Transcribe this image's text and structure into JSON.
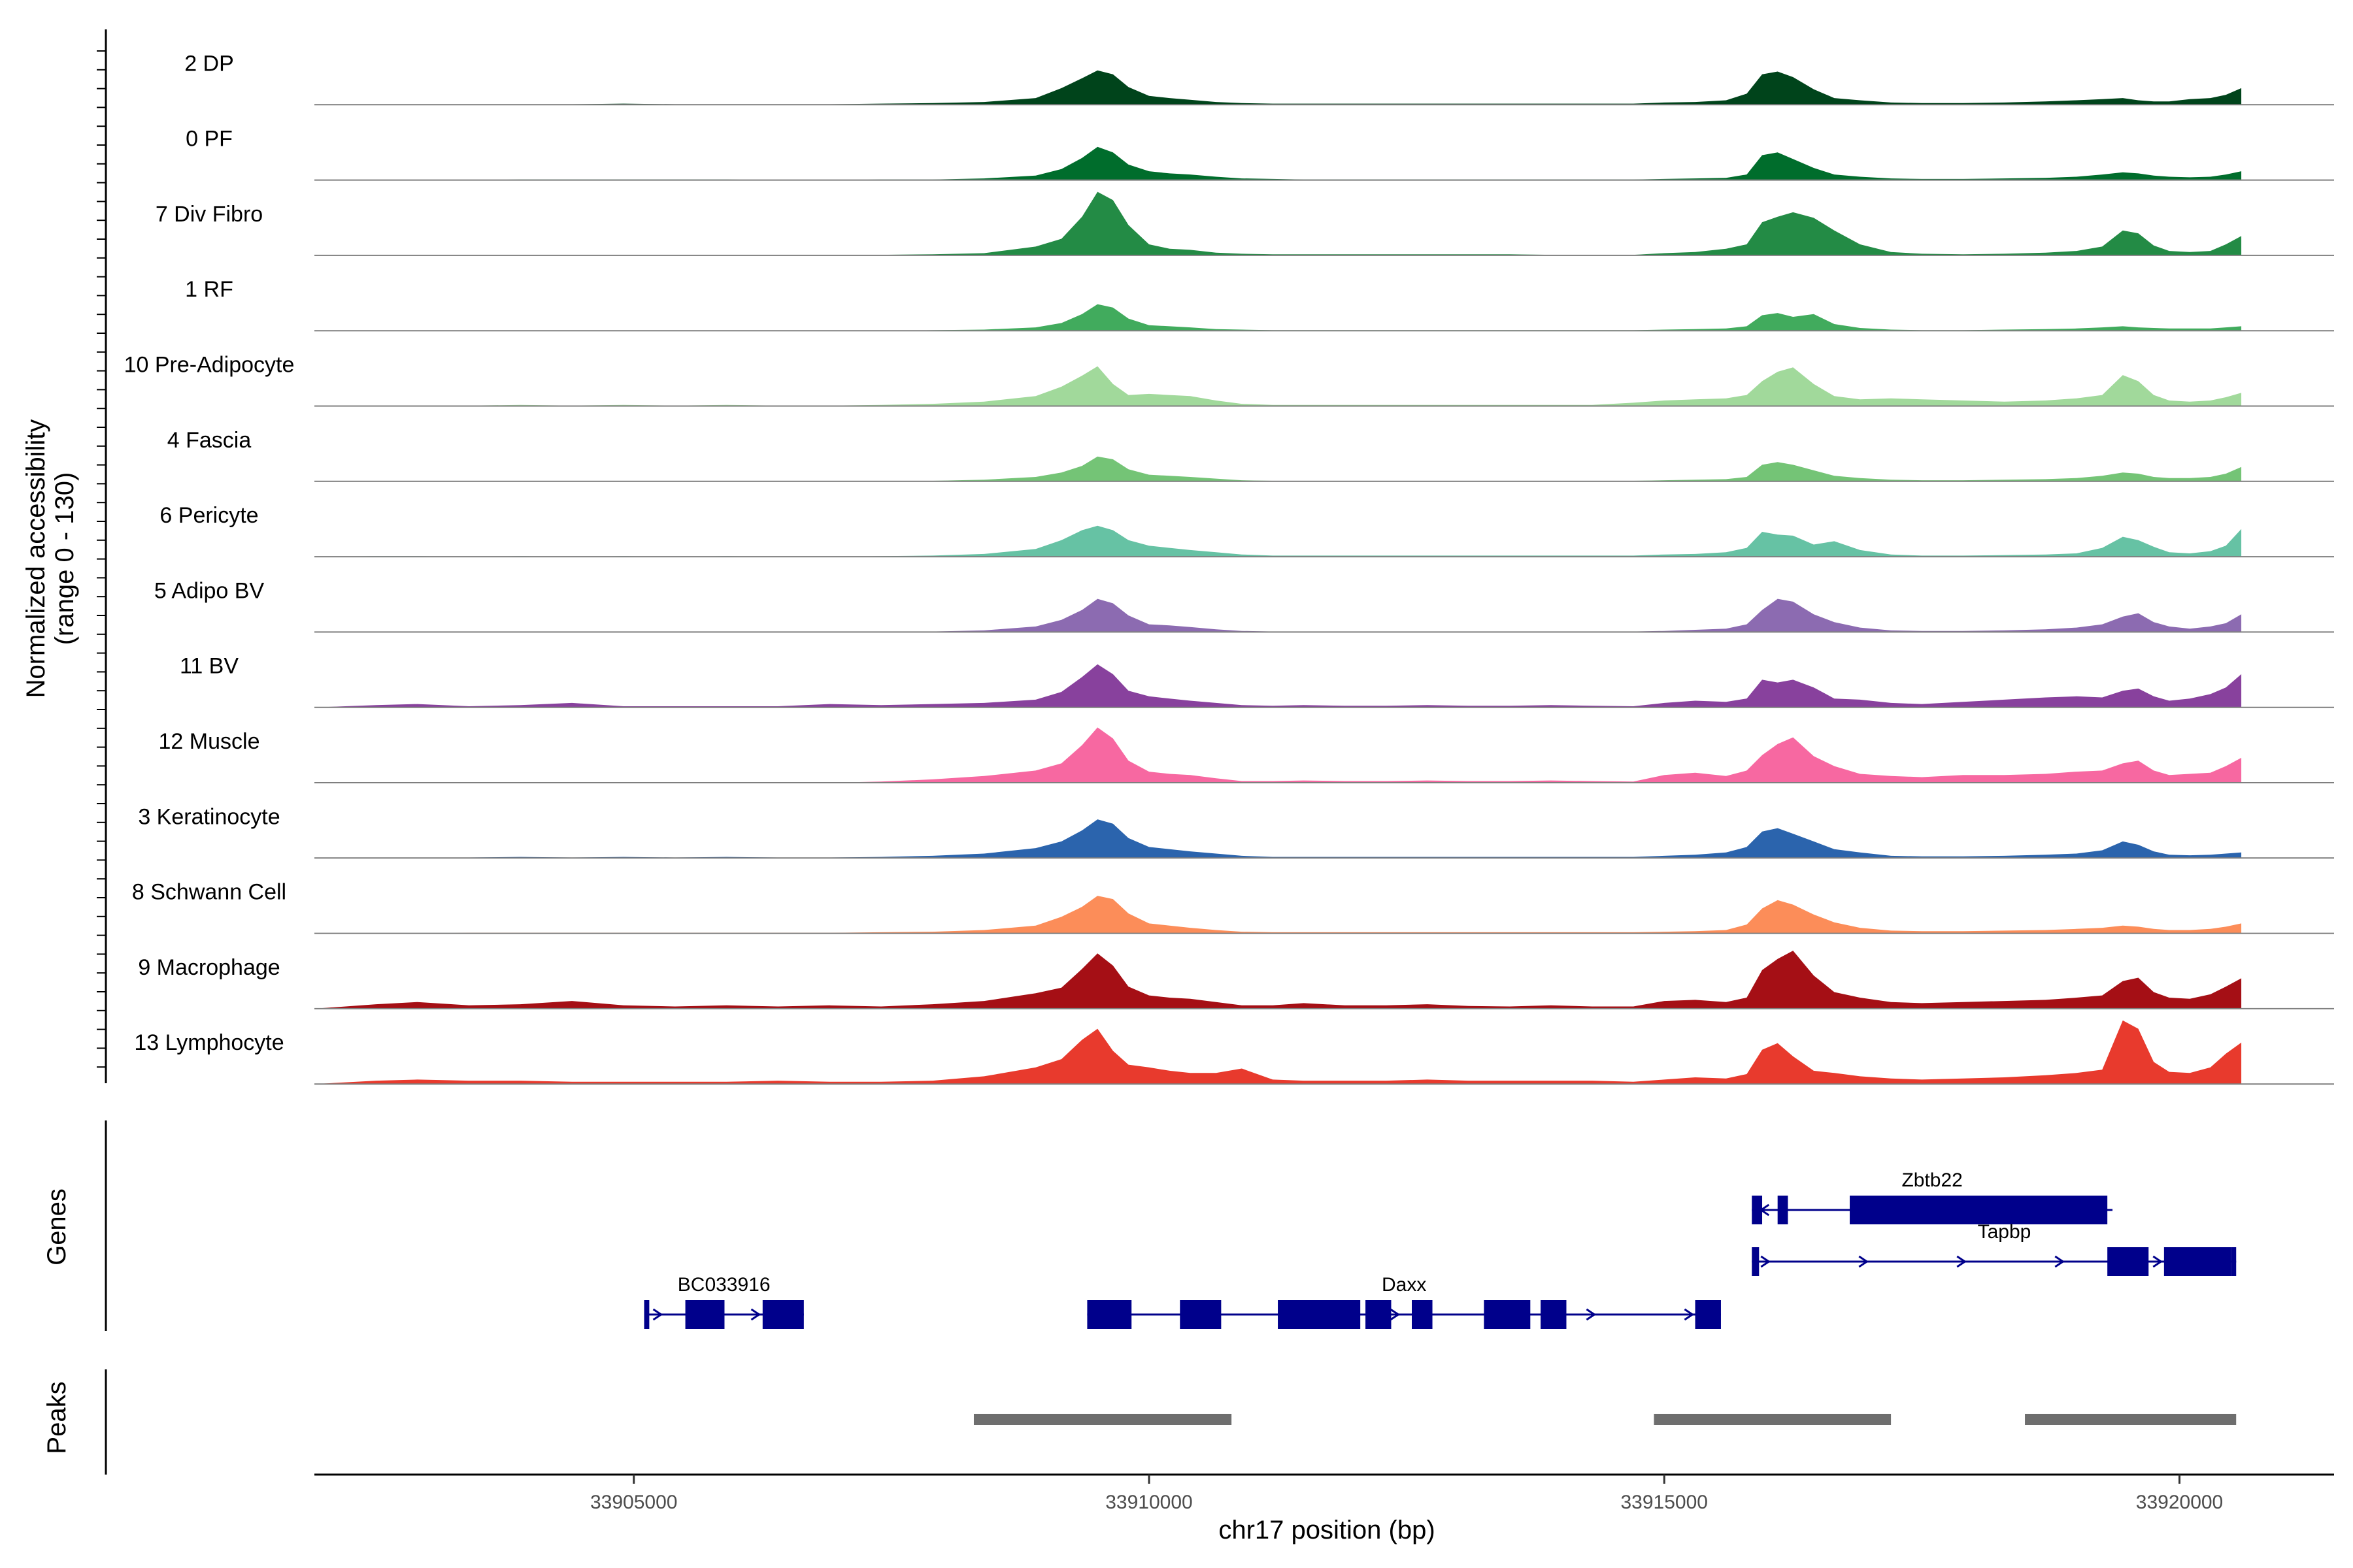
{
  "chart_data": {
    "type": "area",
    "title": "",
    "coverage": {
      "ylabel": "Normalized accessibility",
      "ylabel_range": "(range 0 - 130)",
      "ylim": [
        0,
        130
      ],
      "x": [
        33901900,
        33902500,
        33902900,
        33903400,
        33903900,
        33904400,
        33904900,
        33905400,
        33905900,
        33906400,
        33906900,
        33907400,
        33907900,
        33908400,
        33908900,
        33909150,
        33909350,
        33909500,
        33909650,
        33909800,
        33910000,
        33910200,
        33910400,
        33910650,
        33910900,
        33911200,
        33911500,
        33911900,
        33912300,
        33912700,
        33913100,
        33913500,
        33913900,
        33914300,
        33914700,
        33915000,
        33915300,
        33915600,
        33915800,
        33915950,
        33916100,
        33916250,
        33916450,
        33916650,
        33916900,
        33917200,
        33917500,
        33917900,
        33918300,
        33918700,
        33919000,
        33919250,
        33919450,
        33919600,
        33919750,
        33919900,
        33920100,
        33920300,
        33920450,
        33920600
      ],
      "series": [
        {
          "name": "2 DP",
          "color": "#00441b",
          "values": [
            0,
            0,
            1,
            1,
            1,
            1,
            2,
            1,
            1,
            1,
            1,
            2,
            3,
            5,
            12,
            30,
            48,
            62,
            55,
            32,
            16,
            12,
            9,
            5,
            3,
            2,
            2,
            2,
            2,
            2,
            2,
            2,
            2,
            2,
            2,
            4,
            5,
            8,
            20,
            55,
            60,
            50,
            28,
            12,
            8,
            4,
            3,
            3,
            4,
            6,
            8,
            10,
            12,
            8,
            6,
            6,
            10,
            12,
            18,
            30
          ]
        },
        {
          "name": "0 PF",
          "color": "#006d2c",
          "values": [
            0,
            0,
            0,
            0,
            1,
            1,
            1,
            1,
            1,
            0,
            0,
            1,
            1,
            3,
            8,
            20,
            40,
            60,
            50,
            28,
            16,
            12,
            10,
            6,
            3,
            2,
            1,
            1,
            1,
            1,
            1,
            1,
            1,
            1,
            1,
            2,
            3,
            4,
            10,
            45,
            50,
            38,
            22,
            10,
            6,
            3,
            2,
            2,
            3,
            4,
            6,
            10,
            14,
            12,
            8,
            6,
            5,
            6,
            10,
            16
          ]
        },
        {
          "name": "7 Div Fibro",
          "color": "#238b45",
          "values": [
            0,
            0,
            0,
            0,
            1,
            0,
            1,
            0,
            0,
            0,
            0,
            1,
            2,
            4,
            16,
            30,
            70,
            115,
            100,
            55,
            20,
            12,
            10,
            5,
            3,
            2,
            2,
            2,
            2,
            2,
            2,
            2,
            1,
            1,
            1,
            4,
            6,
            12,
            20,
            60,
            70,
            78,
            68,
            45,
            20,
            6,
            3,
            2,
            3,
            5,
            8,
            16,
            45,
            40,
            18,
            8,
            6,
            8,
            20,
            35
          ]
        },
        {
          "name": "1 RF",
          "color": "#41ab5d",
          "values": [
            0,
            0,
            0,
            0,
            0,
            0,
            0,
            0,
            0,
            0,
            0,
            0,
            1,
            2,
            6,
            14,
            30,
            48,
            42,
            22,
            10,
            8,
            6,
            3,
            2,
            1,
            1,
            1,
            1,
            1,
            1,
            1,
            1,
            1,
            1,
            2,
            3,
            4,
            8,
            28,
            32,
            25,
            30,
            12,
            5,
            2,
            1,
            1,
            2,
            3,
            4,
            6,
            8,
            6,
            5,
            4,
            4,
            4,
            6,
            8
          ]
        },
        {
          "name": "10 Pre-Adipocyte",
          "color": "#a1d99b",
          "values": [
            0,
            1,
            1,
            1,
            2,
            1,
            2,
            1,
            2,
            1,
            1,
            2,
            4,
            8,
            18,
            35,
            55,
            72,
            40,
            20,
            22,
            20,
            18,
            10,
            4,
            2,
            2,
            2,
            2,
            2,
            2,
            2,
            2,
            2,
            6,
            10,
            12,
            14,
            20,
            45,
            62,
            70,
            40,
            18,
            12,
            14,
            12,
            10,
            8,
            10,
            14,
            20,
            56,
            45,
            20,
            10,
            8,
            10,
            16,
            24
          ]
        },
        {
          "name": "4 Fascia",
          "color": "#74c476",
          "values": [
            0,
            0,
            0,
            0,
            0,
            0,
            0,
            0,
            0,
            0,
            0,
            1,
            1,
            3,
            8,
            16,
            28,
            45,
            40,
            22,
            12,
            10,
            8,
            5,
            2,
            1,
            1,
            1,
            1,
            1,
            1,
            1,
            1,
            1,
            1,
            2,
            3,
            4,
            8,
            30,
            35,
            30,
            20,
            10,
            6,
            3,
            2,
            2,
            3,
            4,
            6,
            10,
            16,
            14,
            8,
            6,
            6,
            8,
            14,
            26
          ]
        },
        {
          "name": "6 Pericyte",
          "color": "#66c2a4",
          "values": [
            0,
            1,
            1,
            0,
            1,
            0,
            1,
            0,
            1,
            0,
            0,
            1,
            2,
            5,
            14,
            30,
            48,
            56,
            48,
            30,
            20,
            16,
            12,
            8,
            4,
            2,
            2,
            2,
            2,
            2,
            2,
            2,
            2,
            2,
            2,
            4,
            5,
            8,
            16,
            45,
            40,
            38,
            22,
            28,
            12,
            4,
            2,
            2,
            3,
            4,
            6,
            16,
            36,
            30,
            18,
            8,
            6,
            10,
            20,
            50
          ]
        },
        {
          "name": "5 Adipo BV",
          "color": "#8c6bb1",
          "values": [
            0,
            0,
            0,
            0,
            0,
            0,
            0,
            0,
            0,
            0,
            0,
            0,
            1,
            3,
            10,
            22,
            40,
            60,
            52,
            30,
            14,
            12,
            9,
            5,
            2,
            1,
            1,
            1,
            1,
            1,
            1,
            1,
            1,
            1,
            1,
            2,
            4,
            6,
            14,
            40,
            60,
            55,
            32,
            18,
            8,
            3,
            2,
            2,
            3,
            5,
            8,
            14,
            28,
            34,
            18,
            10,
            6,
            10,
            16,
            32
          ]
        },
        {
          "name": "11 BV",
          "color": "#88419d",
          "values": [
            0,
            4,
            6,
            2,
            4,
            8,
            2,
            2,
            2,
            2,
            6,
            4,
            6,
            8,
            14,
            28,
            55,
            78,
            60,
            30,
            20,
            16,
            12,
            8,
            4,
            3,
            4,
            3,
            3,
            4,
            3,
            3,
            4,
            3,
            2,
            8,
            12,
            10,
            16,
            50,
            45,
            50,
            36,
            16,
            14,
            8,
            6,
            10,
            14,
            18,
            20,
            18,
            30,
            34,
            20,
            12,
            16,
            24,
            36,
            60
          ]
        },
        {
          "name": "12 Muscle",
          "color": "#f768a1",
          "values": [
            0,
            0,
            0,
            0,
            0,
            0,
            0,
            0,
            0,
            0,
            0,
            2,
            6,
            12,
            22,
            35,
            68,
            100,
            80,
            40,
            20,
            16,
            14,
            8,
            3,
            3,
            4,
            3,
            3,
            4,
            3,
            3,
            4,
            3,
            2,
            14,
            18,
            12,
            22,
            50,
            70,
            82,
            48,
            30,
            16,
            12,
            10,
            14,
            14,
            16,
            20,
            22,
            35,
            40,
            22,
            14,
            16,
            18,
            30,
            45
          ]
        },
        {
          "name": "3 Keratinocyte",
          "color": "#2b64ad",
          "values": [
            0,
            0,
            1,
            1,
            2,
            1,
            2,
            1,
            2,
            1,
            1,
            2,
            4,
            8,
            18,
            30,
            50,
            70,
            62,
            36,
            20,
            16,
            12,
            8,
            4,
            2,
            2,
            2,
            2,
            2,
            2,
            2,
            2,
            2,
            2,
            4,
            6,
            10,
            20,
            48,
            54,
            44,
            30,
            16,
            10,
            4,
            3,
            3,
            4,
            6,
            8,
            14,
            30,
            24,
            12,
            6,
            5,
            6,
            8,
            10
          ]
        },
        {
          "name": "8 Schwann Cell",
          "color": "#fc8d59",
          "values": [
            0,
            0,
            0,
            1,
            1,
            1,
            1,
            1,
            1,
            1,
            1,
            2,
            3,
            6,
            14,
            30,
            48,
            68,
            62,
            36,
            18,
            14,
            10,
            6,
            3,
            2,
            2,
            2,
            2,
            2,
            2,
            2,
            2,
            2,
            2,
            3,
            4,
            6,
            16,
            45,
            60,
            52,
            34,
            20,
            10,
            5,
            4,
            4,
            5,
            6,
            8,
            10,
            14,
            12,
            8,
            6,
            6,
            8,
            12,
            18
          ]
        },
        {
          "name": "9 Macrophage",
          "color": "#a50f15",
          "values": [
            0,
            8,
            12,
            6,
            8,
            14,
            6,
            4,
            6,
            4,
            6,
            4,
            8,
            14,
            28,
            38,
            72,
            100,
            78,
            40,
            24,
            20,
            18,
            12,
            6,
            6,
            10,
            6,
            6,
            8,
            5,
            4,
            6,
            4,
            4,
            14,
            16,
            12,
            20,
            70,
            90,
            105,
            60,
            30,
            20,
            12,
            10,
            12,
            14,
            16,
            20,
            24,
            50,
            56,
            30,
            20,
            18,
            26,
            40,
            55
          ]
        },
        {
          "name": "13 Lymphocyte",
          "color": "#e83a2d",
          "values": [
            0,
            6,
            8,
            6,
            6,
            4,
            4,
            4,
            4,
            6,
            4,
            4,
            6,
            14,
            30,
            45,
            80,
            100,
            60,
            35,
            30,
            24,
            20,
            20,
            28,
            8,
            6,
            6,
            6,
            8,
            6,
            6,
            6,
            6,
            4,
            8,
            12,
            10,
            18,
            62,
            74,
            50,
            24,
            20,
            14,
            10,
            8,
            10,
            12,
            16,
            20,
            26,
            115,
            100,
            40,
            22,
            20,
            30,
            55,
            75
          ]
        }
      ]
    },
    "genes_track": {
      "label": "Genes",
      "genes": [
        {
          "name": "BC033916",
          "start": 33905100,
          "end": 33906650,
          "strand": "+",
          "exons": [
            [
              33905100,
              33905150
            ],
            [
              33905500,
              33905880
            ],
            [
              33906250,
              33906650
            ]
          ]
        },
        {
          "name": "Daxx",
          "start": 33909400,
          "end": 33915550,
          "strand": "+",
          "exons": [
            [
              33909400,
              33909830
            ],
            [
              33910300,
              33910700
            ],
            [
              33911250,
              33912050
            ],
            [
              33912100,
              33912350
            ],
            [
              33912550,
              33912750
            ],
            [
              33913250,
              33913700
            ],
            [
              33913800,
              33914050
            ],
            [
              33915300,
              33915550
            ]
          ]
        },
        {
          "name": "Zbtb22",
          "start": 33915850,
          "end": 33919350,
          "strand": "-",
          "exons": [
            [
              33915850,
              33915950
            ],
            [
              33916100,
              33916200
            ],
            [
              33916800,
              33919300
            ]
          ]
        },
        {
          "name": "Tapbp",
          "start": 33915850,
          "end": 33920550,
          "strand": "+",
          "exons": [
            [
              33915850,
              33915920
            ],
            [
              33919300,
              33919700
            ],
            [
              33919850,
              33920500
            ],
            [
              33920500,
              33920550
            ]
          ]
        }
      ]
    },
    "peaks_track": {
      "label": "Peaks",
      "peaks": [
        [
          33908300,
          33910800
        ],
        [
          33914900,
          33917200
        ],
        [
          33918500,
          33920550
        ]
      ],
      "color": "#6e6e6e"
    },
    "x_axis": {
      "label": "chr17 position (bp)",
      "xlim": [
        33901900,
        33921500
      ],
      "ticks": [
        33905000,
        33910000,
        33915000,
        33920000
      ],
      "tick_labels": [
        "33905000",
        "33910000",
        "33915000",
        "33920000"
      ]
    },
    "gene_color": "#00008b",
    "baseline_color": "#7f7f7f"
  }
}
